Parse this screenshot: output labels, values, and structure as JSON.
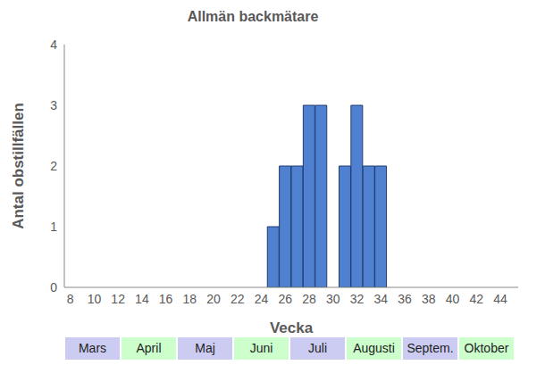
{
  "chart_data": {
    "type": "bar",
    "title": "Allmän backmätare",
    "x_label": "Vecka",
    "y_label": "Antal obstillfällen",
    "x": [
      25,
      26,
      27,
      28,
      29,
      30,
      31,
      32,
      33,
      34
    ],
    "values": [
      1,
      2,
      2,
      3,
      3,
      0,
      2,
      3,
      2,
      2
    ],
    "color": "#4f81d0",
    "xlim": [
      7.5,
      45.5
    ],
    "xticks": [
      8,
      10,
      12,
      14,
      16,
      18,
      20,
      22,
      24,
      26,
      28,
      30,
      32,
      34,
      36,
      38,
      40,
      42,
      44
    ],
    "ylim": [
      0,
      4
    ],
    "yticks": [
      0,
      1,
      2,
      3,
      4
    ],
    "grid": false,
    "annotations": [
      "Mars",
      "April",
      "Maj",
      "Juni",
      "Juli",
      "Augusti",
      "Septem.",
      "Oktober"
    ]
  }
}
